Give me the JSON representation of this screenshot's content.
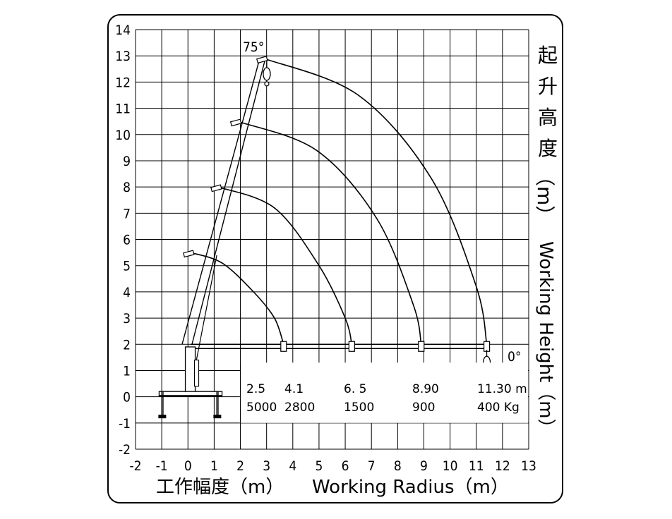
{
  "chart_data": {
    "type": "line",
    "title": "",
    "xlabel": "工作幅度（m）Working Radius（m）",
    "ylabel": "起升高度（m）Working Height（m）",
    "ylabel_zh_chars": [
      "起",
      "升",
      "高",
      "度"
    ],
    "ylabel_unit": "（m）",
    "ylabel_en": "Working Height（m）",
    "xlabel_zh": "工作幅度（m）",
    "xlabel_en": "Working Radius（m）",
    "xlim": [
      -2,
      13
    ],
    "ylim": [
      -2,
      14
    ],
    "grid": true,
    "x_ticks": [
      "-2",
      "-1",
      "0",
      "1",
      "2",
      "3",
      "4",
      "5",
      "6",
      "7",
      "8",
      "9",
      "10",
      "11",
      "12",
      "13"
    ],
    "y_ticks": [
      "14",
      "13",
      "12",
      "11",
      "10",
      "9",
      "8",
      "7",
      "6",
      "5",
      "4",
      "3",
      "2",
      "1",
      "0",
      "-1",
      "-2"
    ],
    "angle_labels": [
      "75°",
      "0°"
    ],
    "pivot": [
      0.1,
      2.0
    ],
    "series": [
      {
        "x": [
          0.1,
          1.3,
          2.5,
          3.3,
          3.65
        ],
        "y": [
          5.5,
          5.1,
          4.0,
          3.0,
          2.0
        ]
      },
      {
        "x": [
          1.15,
          3.3,
          5.0,
          6.0,
          6.25
        ],
        "y": [
          8.0,
          7.2,
          5.0,
          3.0,
          2.0
        ]
      },
      {
        "x": [
          1.9,
          4.9,
          7.2,
          8.6,
          8.9
        ],
        "y": [
          10.5,
          9.4,
          6.8,
          3.5,
          2.0
        ]
      },
      {
        "x": [
          2.9,
          6.5,
          9.3,
          11.0,
          11.4
        ],
        "y": [
          12.9,
          11.5,
          8.3,
          4.2,
          2.0
        ]
      }
    ],
    "load_table": {
      "radius": [
        "2.5",
        "4.1",
        "6. 5",
        "8.90",
        "11.30 m"
      ],
      "load": [
        "5000",
        "2800",
        "1500",
        "900",
        "400 Kg"
      ]
    }
  }
}
